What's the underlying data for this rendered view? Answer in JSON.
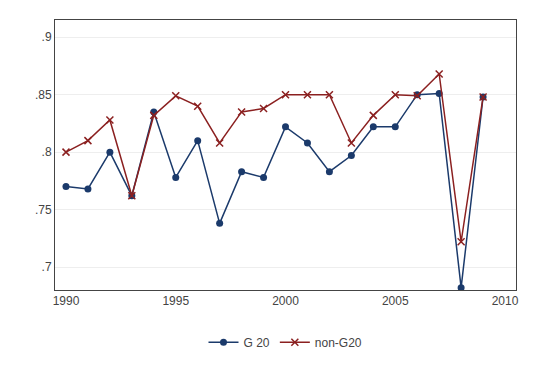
{
  "chart_data": {
    "type": "line",
    "x": [
      1990,
      1991,
      1992,
      1993,
      1994,
      1995,
      1996,
      1997,
      1998,
      1999,
      2000,
      2001,
      2002,
      2003,
      2004,
      2005,
      2006,
      2007,
      2008,
      2009
    ],
    "series": [
      {
        "name": "G 20",
        "color": "#1b3a6b",
        "marker": "circle",
        "values": [
          0.77,
          0.768,
          0.8,
          0.762,
          0.835,
          0.778,
          0.81,
          0.738,
          0.783,
          0.778,
          0.822,
          0.808,
          0.783,
          0.797,
          0.822,
          0.822,
          0.85,
          0.851,
          0.682,
          0.848
        ]
      },
      {
        "name": "non-G20",
        "color": "#8b2020",
        "marker": "x",
        "values": [
          0.8,
          0.81,
          0.828,
          0.762,
          0.832,
          0.849,
          0.84,
          0.808,
          0.835,
          0.838,
          0.85,
          0.85,
          0.85,
          0.808,
          0.832,
          0.85,
          0.849,
          0.868,
          0.722,
          0.848
        ]
      }
    ],
    "xlim": [
      1989.5,
      2010.5
    ],
    "xticks": [
      1990,
      1995,
      2000,
      2005,
      2010
    ],
    "ylim": [
      0.68,
      0.915
    ],
    "yticks": [
      {
        "value": 0.7,
        "label": ".7"
      },
      {
        "value": 0.75,
        "label": ".75"
      },
      {
        "value": 0.8,
        "label": ".8"
      },
      {
        "value": 0.85,
        "label": ".85"
      },
      {
        "value": 0.9,
        "label": ".9"
      }
    ],
    "grid": "y",
    "legend": "bottom"
  }
}
